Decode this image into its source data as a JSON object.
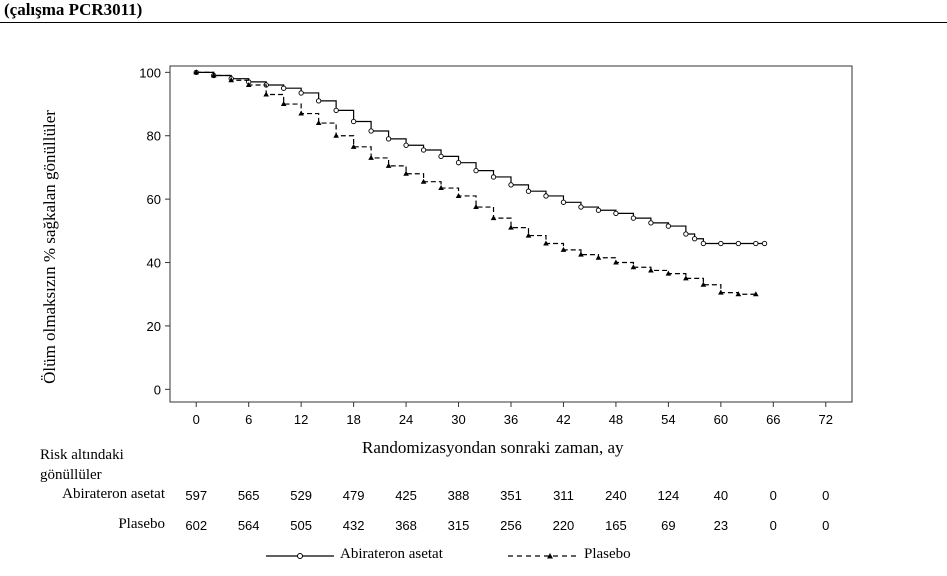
{
  "header": {
    "title": "(çalışma PCR3011)"
  },
  "chart_data": {
    "type": "line",
    "title": "",
    "xlabel": "Randomizasyondan sonraki zaman, ay",
    "ylabel": "Ölüm olmaksızın % sağkalan gönüllüler",
    "xlim": [
      -3,
      75
    ],
    "ylim": [
      -4,
      102
    ],
    "x_ticks": [
      0,
      6,
      12,
      18,
      24,
      30,
      36,
      42,
      48,
      54,
      60,
      66,
      72
    ],
    "y_ticks": [
      0,
      20,
      40,
      60,
      80,
      100
    ],
    "grid": false,
    "legend_position": "bottom",
    "series": [
      {
        "name": "Abirateron asetat",
        "line_style": "solid",
        "marker": "circle",
        "color": "#000000",
        "x": [
          0,
          2,
          4,
          6,
          8,
          10,
          12,
          14,
          16,
          18,
          20,
          22,
          24,
          26,
          28,
          30,
          32,
          34,
          36,
          38,
          40,
          42,
          44,
          46,
          48,
          50,
          52,
          54,
          56,
          57,
          58,
          60,
          62,
          64,
          65
        ],
        "y": [
          100,
          99,
          98,
          97,
          96,
          95,
          93.5,
          91,
          88,
          84.5,
          81.5,
          79,
          77,
          75.5,
          73.5,
          71.5,
          69,
          67,
          64.5,
          62.5,
          61,
          59,
          57.5,
          56.5,
          55.5,
          54,
          52.5,
          51.5,
          49,
          47.5,
          46,
          46,
          46,
          46,
          46
        ]
      },
      {
        "name": "Plasebo",
        "line_style": "dashed",
        "marker": "triangle",
        "color": "#000000",
        "x": [
          0,
          2,
          4,
          6,
          8,
          10,
          12,
          14,
          16,
          18,
          20,
          22,
          24,
          26,
          28,
          30,
          32,
          34,
          36,
          38,
          40,
          42,
          44,
          46,
          48,
          50,
          52,
          54,
          56,
          58,
          60,
          62,
          64
        ],
        "y": [
          100,
          99,
          97.5,
          96,
          93,
          90,
          87,
          84,
          80,
          76.5,
          73,
          70.5,
          68,
          65.5,
          63.5,
          61,
          57.5,
          54,
          51,
          48.5,
          46,
          44,
          42.5,
          41.5,
          40,
          38.5,
          37.5,
          36.5,
          35,
          33,
          30.5,
          30,
          30
        ]
      }
    ],
    "risk_table": {
      "header": "Risk altındaki gönüllüler",
      "columns": [
        0,
        6,
        12,
        18,
        24,
        30,
        36,
        42,
        48,
        54,
        60,
        66,
        72
      ],
      "rows": [
        {
          "label": "Abirateron asetat",
          "values": [
            "597",
            "565",
            "529",
            "479",
            "425",
            "388",
            "351",
            "311",
            "240",
            "124",
            "40",
            "0",
            "0"
          ]
        },
        {
          "label": "Plasebo",
          "values": [
            "602",
            "564",
            "505",
            "432",
            "368",
            "315",
            "256",
            "220",
            "165",
            "69",
            "23",
            "0",
            "0"
          ]
        }
      ]
    }
  }
}
